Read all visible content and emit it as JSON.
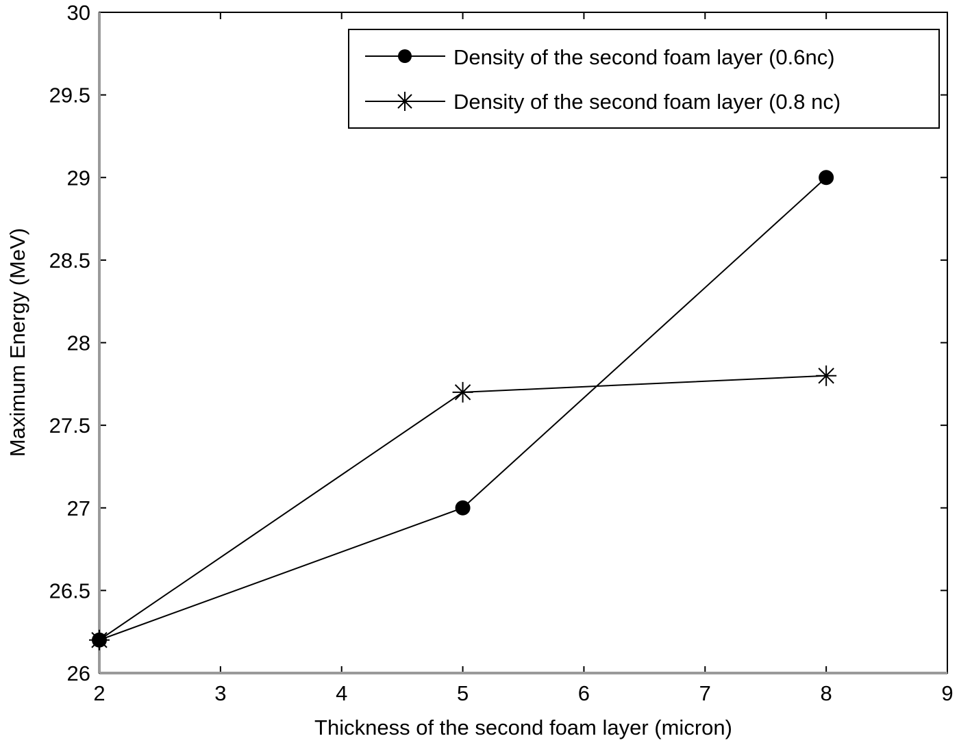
{
  "chart_data": {
    "type": "line",
    "title": "",
    "xlabel": "Thickness of the second foam layer (micron)",
    "ylabel": "Maximum Energy (MeV)",
    "xlim": [
      2,
      9
    ],
    "ylim": [
      26,
      30
    ],
    "xticks": [
      2,
      3,
      4,
      5,
      6,
      7,
      8,
      9
    ],
    "yticks": [
      26,
      26.5,
      27,
      27.5,
      28,
      28.5,
      29,
      29.5,
      30
    ],
    "xtick_labels": [
      "2",
      "3",
      "4",
      "5",
      "6",
      "7",
      "8",
      "9"
    ],
    "ytick_labels": [
      "26",
      "26.5",
      "27",
      "27.5",
      "28",
      "28.5",
      "29",
      "29.5",
      "30"
    ],
    "grid": false,
    "legend_position": "upper right",
    "x": [
      2,
      5,
      8
    ],
    "series": [
      {
        "name": "Density of the second foam layer (0.6nc)",
        "marker": "filled-circle",
        "color": "#000000",
        "values": [
          26.2,
          27.0,
          29.0
        ]
      },
      {
        "name": "Density of the second foam layer (0.8 nc)",
        "marker": "asterisk",
        "color": "#000000",
        "values": [
          26.2,
          27.7,
          27.8
        ]
      }
    ]
  }
}
